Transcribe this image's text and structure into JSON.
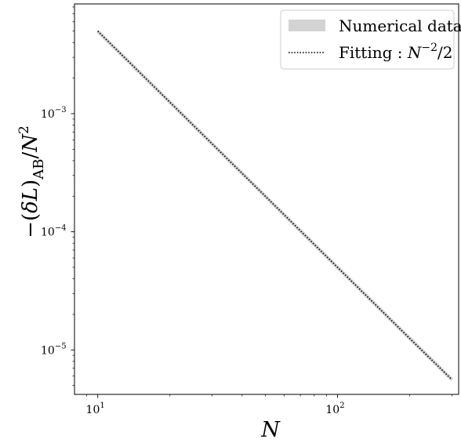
{
  "chart_data": {
    "type": "line",
    "x_scale": "log",
    "y_scale": "log",
    "xlim": [
      8.0,
      320
    ],
    "ylim": [
      4.2e-06,
      0.0085
    ],
    "xlabel": "N",
    "ylabel": "−(δL)AB/N²",
    "x_ticks": [
      {
        "value": 10,
        "base": "10",
        "exp": "1"
      },
      {
        "value": 100,
        "base": "10",
        "exp": "2"
      }
    ],
    "y_ticks": [
      {
        "value": 1e-05,
        "base": "10",
        "exp": "−5"
      },
      {
        "value": 0.0001,
        "base": "10",
        "exp": "−4"
      },
      {
        "value": 0.001,
        "base": "10",
        "exp": "−3"
      }
    ],
    "grid": false,
    "legend_position": "top-right",
    "series": [
      {
        "name": "Numerical data",
        "style": "band",
        "color": "#d3d3d3",
        "x": [
          10,
          20,
          50,
          100,
          200,
          300
        ],
        "y": [
          0.005,
          0.00125,
          0.0002,
          5e-05,
          1.25e-05,
          5.6e-06
        ]
      },
      {
        "name": "Fitting : N−2/2",
        "style": "dotted",
        "color": "#000000",
        "x": [
          10,
          20,
          50,
          100,
          200,
          300
        ],
        "y": [
          0.005,
          0.00125,
          0.0002,
          5e-05,
          1.25e-05,
          5.6e-06
        ]
      }
    ],
    "legend": {
      "entries": [
        {
          "label": "Numerical data"
        },
        {
          "label_prefix": "Fitting : ",
          "label_var": "N",
          "label_exp": "−2",
          "label_suffix": "/2"
        }
      ]
    },
    "ylabel_parts": {
      "pre": "−(",
      "delta": "δ",
      "L": "L",
      "close": ")",
      "sub": "AB",
      "slash": "/",
      "N": "N",
      "exp": "2"
    }
  }
}
